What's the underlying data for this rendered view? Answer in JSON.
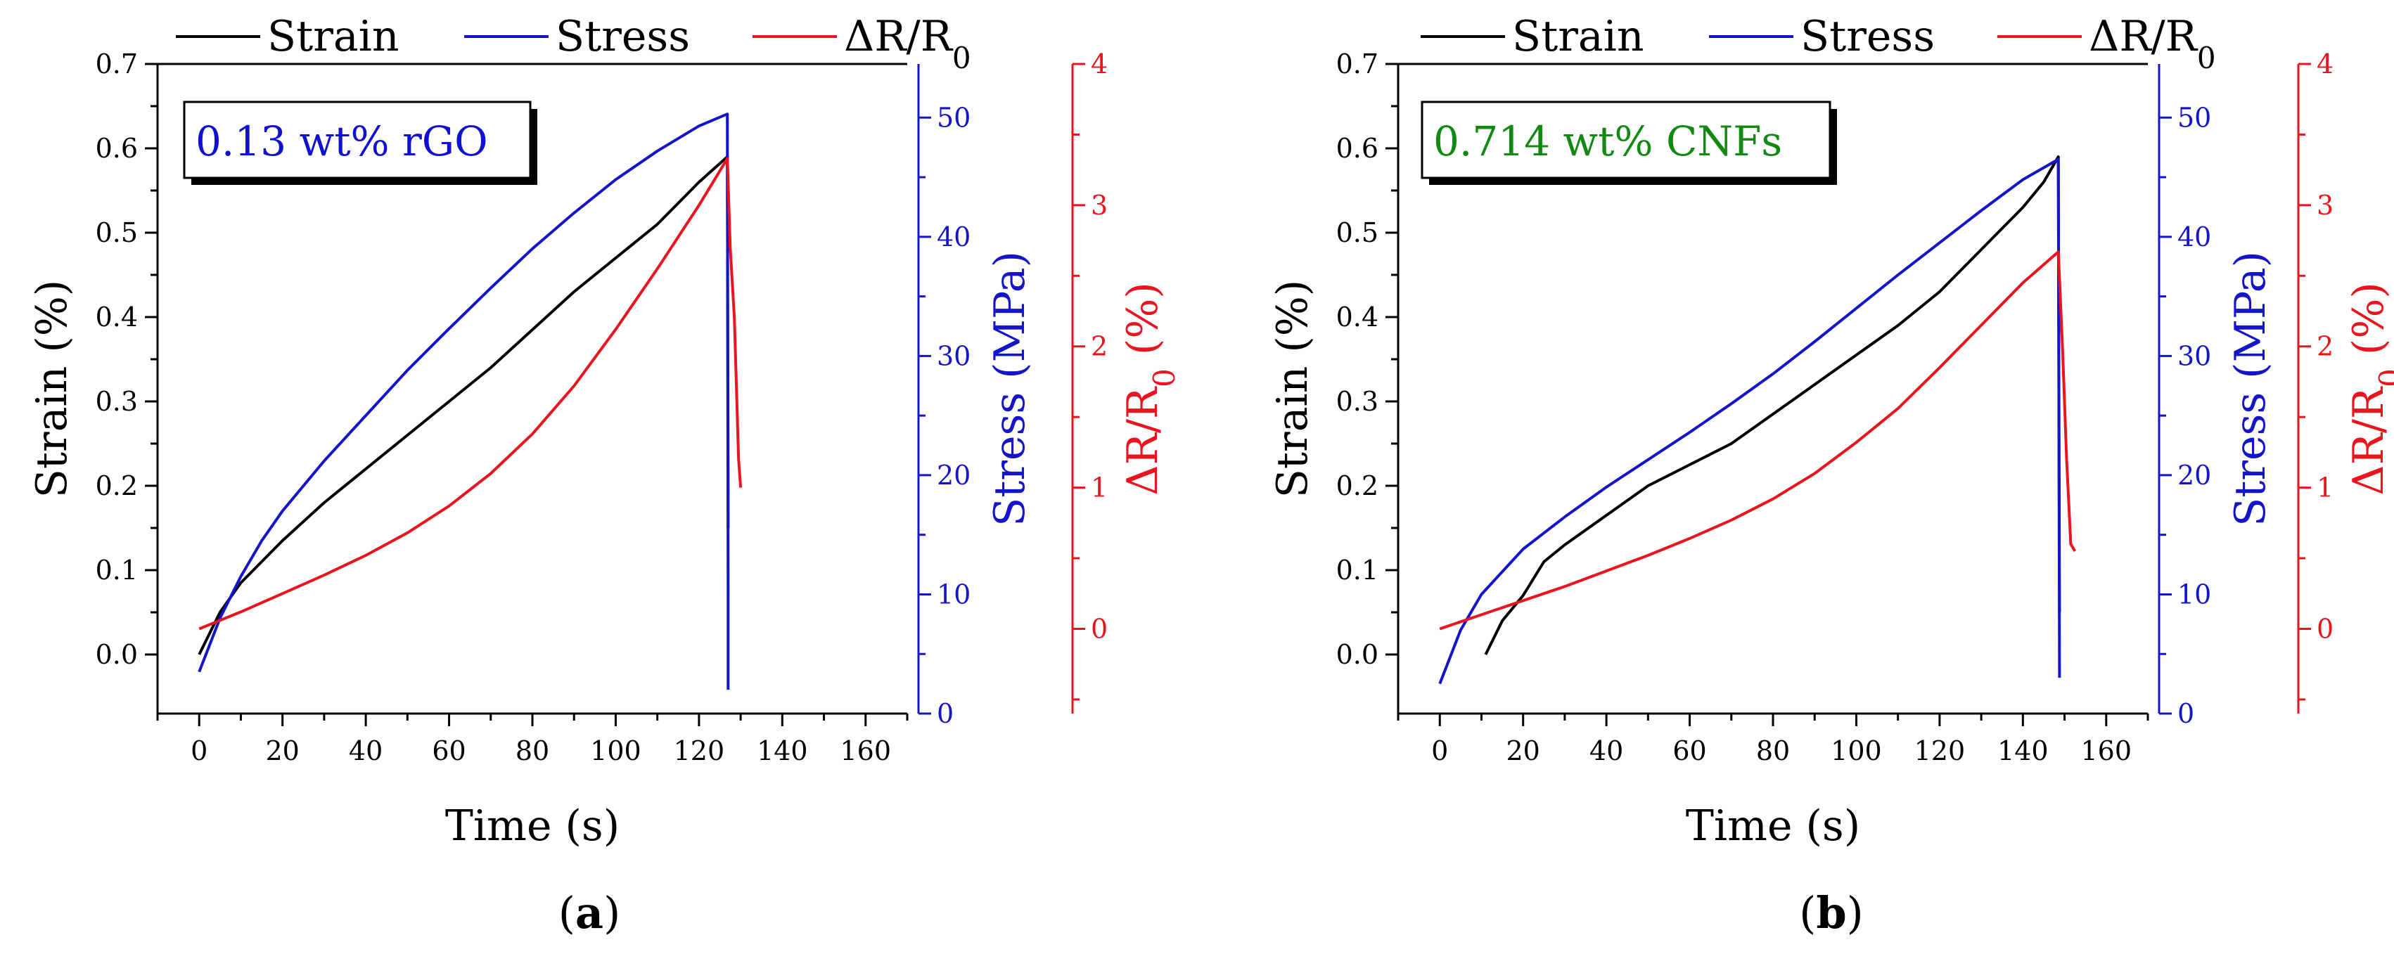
{
  "chart_data": [
    {
      "type": "line",
      "panel_label": "(a)",
      "annotation": "0.13 wt% rGO",
      "annotation_color": "#1010d0",
      "xlabel": "Time (s)",
      "xlim": [
        -10,
        170
      ],
      "xticks": [
        0,
        20,
        40,
        60,
        80,
        100,
        120,
        140,
        160
      ],
      "axes": {
        "strain": {
          "label": "Strain (%)",
          "range": [
            -0.07,
            0.7
          ],
          "ticks": [
            0.0,
            0.1,
            0.2,
            0.3,
            0.4,
            0.5,
            0.6,
            0.7
          ],
          "color": "#000000"
        },
        "stress": {
          "label": "Stress (MPa)",
          "range": [
            0,
            54.5
          ],
          "ticks": [
            0,
            10,
            20,
            30,
            40,
            50
          ],
          "color": "#1414c8"
        },
        "resistance": {
          "label": "ΔR/R0 (%)",
          "range": [
            -0.6,
            4
          ],
          "ticks": [
            0,
            1,
            2,
            3,
            4
          ],
          "color": "#e8141e"
        }
      },
      "legend": [
        "Strain",
        "Stress",
        "ΔR/R0"
      ],
      "series": [
        {
          "name": "Strain",
          "axis": "strain",
          "color": "#000000",
          "x": [
            0,
            5,
            10,
            20,
            30,
            40,
            50,
            60,
            70,
            80,
            90,
            100,
            110,
            120,
            126.8,
            127,
            127
          ],
          "y": [
            0.0,
            0.05,
            0.085,
            0.135,
            0.18,
            0.22,
            0.26,
            0.3,
            0.34,
            0.385,
            0.43,
            0.47,
            0.51,
            0.56,
            0.59,
            0.2,
            0.15
          ]
        },
        {
          "name": "Stress",
          "axis": "stress",
          "color": "#1414c8",
          "x": [
            0,
            5,
            10,
            15,
            20,
            30,
            40,
            50,
            60,
            70,
            80,
            90,
            100,
            110,
            120,
            126.8,
            127,
            127
          ],
          "y": [
            3.5,
            8.0,
            11.5,
            14.5,
            17.0,
            21.2,
            25.0,
            28.8,
            32.3,
            35.7,
            39.0,
            42.0,
            44.8,
            47.2,
            49.3,
            50.3,
            10.0,
            2.0
          ]
        },
        {
          "name": "ΔR/R0",
          "axis": "resistance",
          "color": "#e8141e",
          "x": [
            0,
            10,
            20,
            30,
            40,
            50,
            60,
            70,
            80,
            90,
            100,
            110,
            120,
            126.8,
            127.5,
            128.5,
            129.5,
            130
          ],
          "y": [
            0.0,
            0.12,
            0.25,
            0.38,
            0.52,
            0.68,
            0.87,
            1.1,
            1.38,
            1.72,
            2.12,
            2.55,
            3.0,
            3.33,
            2.7,
            2.2,
            1.2,
            1.0
          ]
        }
      ]
    },
    {
      "type": "line",
      "panel_label": "(b)",
      "annotation": "0.714 wt% CNFs",
      "annotation_color": "#128a12",
      "xlabel": "Time (s)",
      "xlim": [
        -10,
        170
      ],
      "xticks": [
        0,
        20,
        40,
        60,
        80,
        100,
        120,
        140,
        160
      ],
      "axes": {
        "strain": {
          "label": "Strain (%)",
          "range": [
            -0.07,
            0.7
          ],
          "ticks": [
            0.0,
            0.1,
            0.2,
            0.3,
            0.4,
            0.5,
            0.6,
            0.7
          ],
          "color": "#000000"
        },
        "stress": {
          "label": "Stress (MPa)",
          "range": [
            0,
            54.5
          ],
          "ticks": [
            0,
            10,
            20,
            30,
            40,
            50
          ],
          "color": "#1414c8"
        },
        "resistance": {
          "label": "ΔR/R0 (%)",
          "range": [
            -0.6,
            4
          ],
          "ticks": [
            0,
            1,
            2,
            3,
            4
          ],
          "color": "#e8141e"
        }
      },
      "legend": [
        "Strain",
        "Stress",
        "ΔR/R0"
      ],
      "series": [
        {
          "name": "Strain",
          "axis": "strain",
          "color": "#000000",
          "x": [
            11,
            15,
            20,
            25,
            30,
            40,
            50,
            60,
            70,
            80,
            90,
            100,
            110,
            120,
            130,
            140,
            145,
            148.5,
            148.7,
            148.8
          ],
          "y": [
            0.0,
            0.04,
            0.07,
            0.11,
            0.13,
            0.165,
            0.2,
            0.225,
            0.25,
            0.285,
            0.32,
            0.355,
            0.39,
            0.43,
            0.48,
            0.53,
            0.56,
            0.59,
            0.2,
            0.05
          ]
        },
        {
          "name": "Stress",
          "axis": "stress",
          "color": "#1414c8",
          "x": [
            0,
            5,
            10,
            20,
            30,
            40,
            50,
            60,
            70,
            80,
            90,
            100,
            110,
            120,
            130,
            140,
            148.5,
            148.7,
            148.8
          ],
          "y": [
            2.5,
            7.0,
            10.0,
            13.8,
            16.5,
            19.0,
            21.3,
            23.6,
            26.0,
            28.5,
            31.2,
            34.0,
            36.8,
            39.5,
            42.2,
            44.8,
            46.5,
            15.0,
            3.0
          ]
        },
        {
          "name": "ΔR/R0",
          "axis": "resistance",
          "color": "#e8141e",
          "x": [
            0,
            10,
            20,
            30,
            40,
            50,
            60,
            70,
            80,
            90,
            100,
            110,
            120,
            130,
            140,
            148.5,
            149.5,
            150.5,
            151.5,
            152.5
          ],
          "y": [
            0.0,
            0.1,
            0.2,
            0.3,
            0.41,
            0.52,
            0.64,
            0.77,
            0.92,
            1.1,
            1.32,
            1.56,
            1.85,
            2.15,
            2.45,
            2.67,
            2.0,
            1.2,
            0.6,
            0.55
          ]
        }
      ]
    }
  ]
}
